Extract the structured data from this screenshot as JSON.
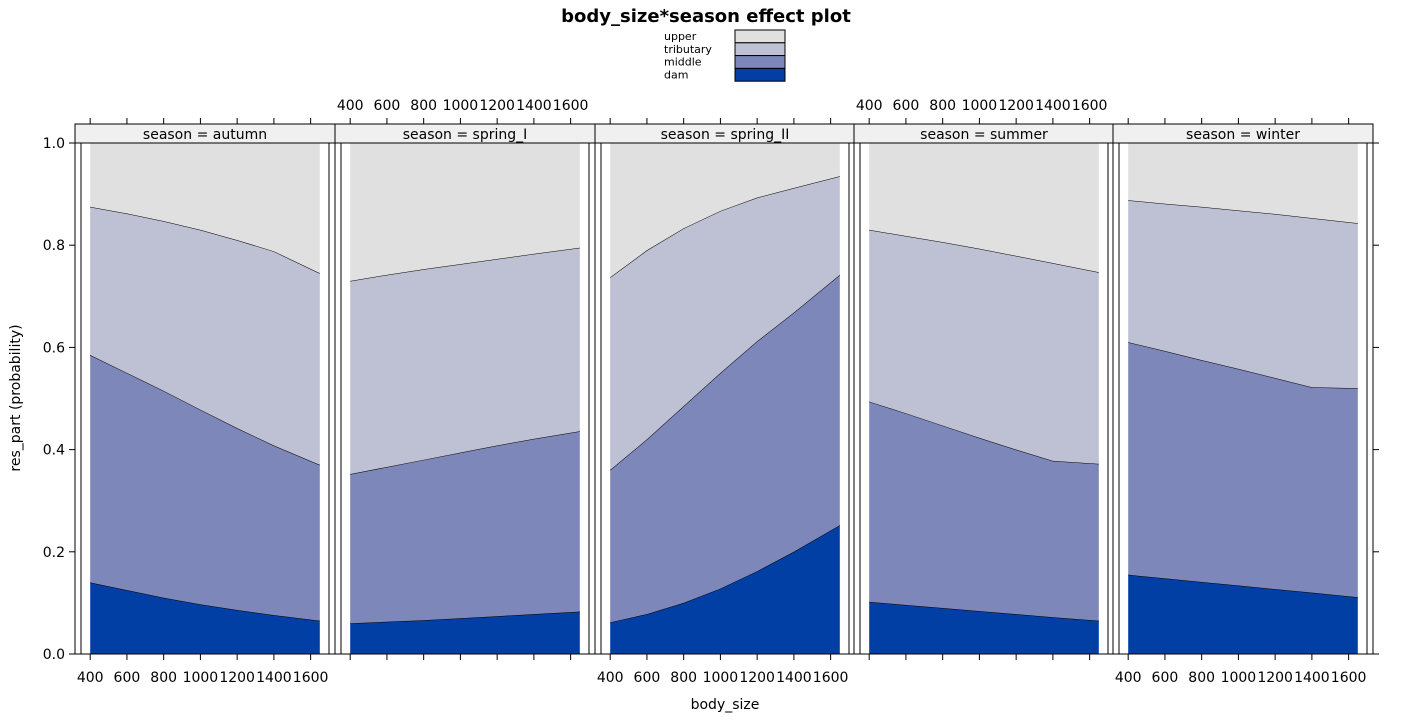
{
  "chart_data": {
    "type": "area",
    "title": "body_size*season effect plot",
    "xlabel": "body_size",
    "ylabel": "res_part (probability)",
    "xlim": [
      350,
      1700
    ],
    "ylim": [
      0,
      1
    ],
    "x_ticks": [
      400,
      600,
      800,
      1000,
      1200,
      1400,
      1600
    ],
    "y_ticks": [
      "0.0",
      "0.2",
      "0.4",
      "0.6",
      "0.8",
      "1.0"
    ],
    "x_tick_labels": [
      "400",
      "600",
      "800",
      "1000",
      "1200",
      "1400",
      "1600"
    ],
    "x_tick_label_text": "400  600  800 1000120014001600",
    "stack_order_bottom_to_top": [
      "dam",
      "middle",
      "tributary",
      "upper"
    ],
    "legend": [
      {
        "name": "upper",
        "color": "#e0e0e0"
      },
      {
        "name": "tributary",
        "color": "#bec1d4"
      },
      {
        "name": "middle",
        "color": "#7d87b9"
      },
      {
        "name": "dam",
        "color": "#023fa5"
      }
    ],
    "panels": [
      {
        "strip": "season = autumn",
        "x": [
          400,
          600,
          800,
          1000,
          1200,
          1400,
          1650
        ],
        "cumulative": {
          "dam": [
            0.14,
            0.125,
            0.11,
            0.097,
            0.086,
            0.076,
            0.065
          ],
          "middle": [
            0.585,
            0.55,
            0.515,
            0.478,
            0.442,
            0.408,
            0.37
          ],
          "tributary": [
            0.875,
            0.862,
            0.847,
            0.83,
            0.81,
            0.788,
            0.745
          ]
        }
      },
      {
        "strip": "season = spring_I",
        "x": [
          400,
          600,
          800,
          1000,
          1200,
          1400,
          1650
        ],
        "cumulative": {
          "dam": [
            0.06,
            0.063,
            0.066,
            0.07,
            0.074,
            0.078,
            0.083
          ],
          "middle": [
            0.352,
            0.366,
            0.38,
            0.394,
            0.408,
            0.421,
            0.436
          ],
          "tributary": [
            0.73,
            0.742,
            0.753,
            0.763,
            0.773,
            0.783,
            0.795
          ]
        }
      },
      {
        "strip": "season = spring_II",
        "x": [
          400,
          600,
          800,
          1000,
          1200,
          1400,
          1650
        ],
        "cumulative": {
          "dam": [
            0.062,
            0.078,
            0.1,
            0.128,
            0.162,
            0.2,
            0.252
          ],
          "middle": [
            0.36,
            0.42,
            0.485,
            0.55,
            0.612,
            0.668,
            0.742
          ],
          "tributary": [
            0.737,
            0.79,
            0.833,
            0.867,
            0.893,
            0.912,
            0.935
          ]
        }
      },
      {
        "strip": "season = summer",
        "x": [
          400,
          600,
          800,
          1000,
          1200,
          1400,
          1650
        ],
        "cumulative": {
          "dam": [
            0.102,
            0.096,
            0.09,
            0.084,
            0.078,
            0.072,
            0.065
          ],
          "middle": [
            0.494,
            0.471,
            0.447,
            0.423,
            0.4,
            0.378,
            0.372
          ],
          "tributary": [
            0.83,
            0.818,
            0.806,
            0.793,
            0.779,
            0.765,
            0.747
          ]
        }
      },
      {
        "strip": "season = winter",
        "x": [
          400,
          600,
          800,
          1000,
          1200,
          1400,
          1650
        ],
        "cumulative": {
          "dam": [
            0.155,
            0.148,
            0.141,
            0.134,
            0.127,
            0.12,
            0.111
          ],
          "middle": [
            0.61,
            0.593,
            0.575,
            0.558,
            0.54,
            0.522,
            0.52
          ],
          "tributary": [
            0.888,
            0.881,
            0.875,
            0.868,
            0.861,
            0.853,
            0.843
          ]
        }
      }
    ]
  }
}
